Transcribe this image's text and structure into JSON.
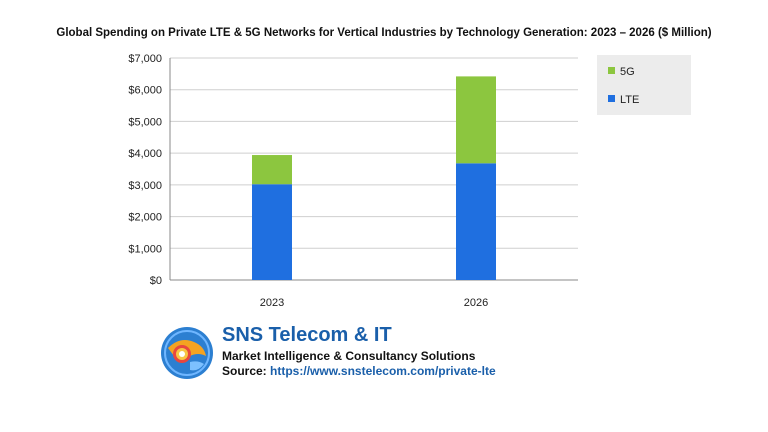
{
  "chart_data": {
    "type": "bar",
    "stacked": true,
    "title": "Global Spending on Private LTE & 5G Networks for Vertical Industries by Technology Generation: 2023 – 2026 ($ Million)",
    "categories": [
      "2023",
      "2026"
    ],
    "series": [
      {
        "name": "LTE",
        "color": "#1f6fe0",
        "values": [
          3020,
          3680
        ]
      },
      {
        "name": "5G",
        "color": "#8cc63f",
        "values": [
          920,
          2740
        ]
      }
    ],
    "y_ticks": [
      "$0",
      "$1,000",
      "$2,000",
      "$3,000",
      "$4,000",
      "$5,000",
      "$6,000",
      "$7,000"
    ],
    "ylim": [
      0,
      7000
    ],
    "grid": true,
    "legend": {
      "placement": "right",
      "order": [
        "5G",
        "LTE"
      ]
    }
  },
  "brand": {
    "name": "SNS Telecom & IT",
    "tagline": "Market Intelligence & Consultancy Solutions",
    "source_label": "Source:",
    "source_url": "https://www.snstelecom.com/private-lte"
  }
}
